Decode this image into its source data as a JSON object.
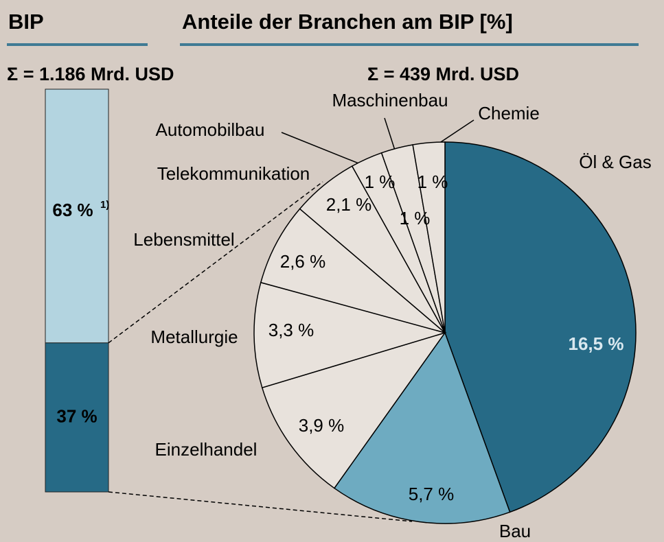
{
  "chart_data": [
    {
      "type": "bar",
      "title": "BIP",
      "subtitle": "Σ = 1.186 Mrd. USD",
      "stacked": true,
      "values": [
        63,
        37
      ],
      "value_labels": [
        "63 %",
        "37 %"
      ],
      "footnote_marker": "1)",
      "colors": [
        "#b3d4e0",
        "#266a86"
      ]
    },
    {
      "type": "pie",
      "title": "Anteile der Branchen am BIP [%]",
      "subtitle": "Σ = 439 Mrd. USD",
      "categories": [
        "Öl & Gas",
        "Bau",
        "Einzelhandel",
        "Metallurgie",
        "Lebensmittel",
        "Telekommunikation",
        "Automobilbau",
        "Maschinenbau",
        "Chemie"
      ],
      "values": [
        16.5,
        5.7,
        3.9,
        3.3,
        2.6,
        2.1,
        1,
        1,
        1
      ],
      "value_labels": [
        "16,5 %",
        "5,7 %",
        "3,9 %",
        "3,3 %",
        "2,6 %",
        "2,1 %",
        "1 %",
        "1 %",
        "1 %"
      ],
      "colors": [
        "#266a86",
        "#6eabc1",
        "#e8e2dc",
        "#e8e2dc",
        "#e8e2dc",
        "#e8e2dc",
        "#e8e2dc",
        "#e8e2dc",
        "#e8e2dc"
      ]
    }
  ]
}
